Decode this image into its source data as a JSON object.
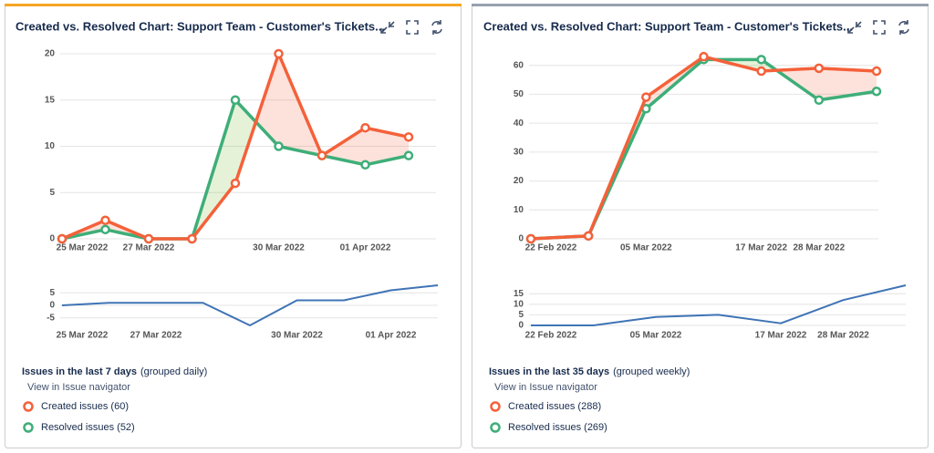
{
  "panels": [
    {
      "title": "Created vs. Resolved Chart: Support Team - Customer's Tickets...",
      "main_chart": {
        "type": "line",
        "categories": [
          "25 Mar 2022",
          null,
          "27 Mar 2022",
          null,
          null,
          "30 Mar 2022",
          null,
          "01 Apr 2022",
          null
        ],
        "series": [
          {
            "color": "#f4613a",
            "values": [
              0,
              2,
              0,
              0,
              6,
              20,
              9,
              12,
              11
            ]
          },
          {
            "color": "#3eae78",
            "values": [
              0,
              1,
              0,
              0,
              15,
              10,
              9,
              8,
              9
            ]
          }
        ],
        "ylim": [
          0,
          20
        ],
        "yticks": [
          0,
          5,
          10,
          15,
          20
        ]
      },
      "trend_chart": {
        "type": "line",
        "categories": [
          "25 Mar 2022",
          null,
          "27 Mar 2022",
          null,
          null,
          "30 Mar 2022",
          null,
          "01 Apr 2022",
          null
        ],
        "series": [
          {
            "color": "#3f74b5",
            "values": [
              0,
              1,
              1,
              1,
              -8,
              2,
              2,
              6,
              8
            ]
          }
        ],
        "ylim": [
          -8,
          8
        ],
        "yticks": [
          -5,
          0,
          5
        ]
      },
      "legend": {
        "heading": "Issues in the last 7 days",
        "grouping": "(grouped daily)",
        "link": "View in Issue navigator",
        "items": [
          "Created issues (60)",
          "Resolved issues (52)"
        ]
      }
    },
    {
      "title": "Created vs. Resolved Chart: Support Team - Customer's Tickets...",
      "main_chart": {
        "type": "line",
        "categories": [
          "22 Feb 2022",
          null,
          "05 Mar 2022",
          null,
          "17 Mar 2022",
          "28 Mar 2022",
          null
        ],
        "series": [
          {
            "color": "#f4613a",
            "values": [
              0,
              1,
              49,
              63,
              58,
              59,
              58
            ]
          },
          {
            "color": "#3eae78",
            "values": [
              0,
              1,
              45,
              62,
              62,
              48,
              51
            ]
          }
        ],
        "ylim": [
          0,
          64
        ],
        "yticks": [
          0,
          10,
          20,
          30,
          40,
          50,
          60
        ]
      },
      "trend_chart": {
        "type": "line",
        "categories": [
          "22 Feb 2022",
          null,
          "05 Mar 2022",
          null,
          "17 Mar 2022",
          "28 Mar 2022",
          null
        ],
        "series": [
          {
            "color": "#3f74b5",
            "values": [
              0,
              0,
              4,
              5,
              1,
              12,
              19
            ]
          }
        ],
        "ylim": [
          0,
          19
        ],
        "yticks": [
          0,
          5,
          10,
          15
        ]
      },
      "legend": {
        "heading": "Issues in the last 35 days",
        "grouping": "(grouped weekly)",
        "link": "View in Issue navigator",
        "items": [
          "Created issues (288)",
          "Resolved issues (269)"
        ]
      }
    }
  ]
}
